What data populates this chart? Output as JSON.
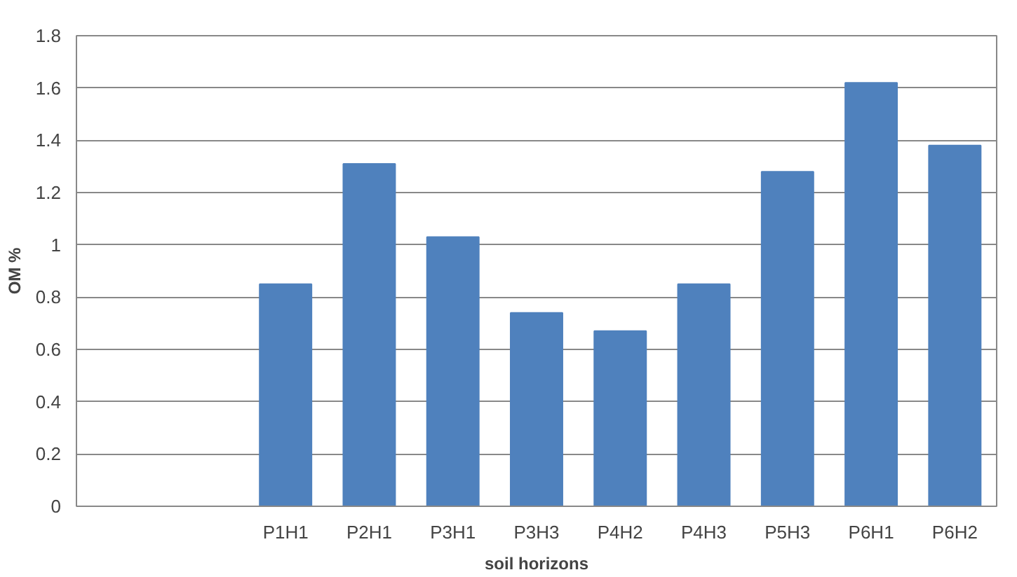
{
  "chart_data": {
    "type": "bar",
    "xlabel": "soil horizons",
    "ylabel": "OM %",
    "categories": [
      null,
      null,
      "P1H1",
      "P2H1",
      "P3H1",
      "P3H3",
      "P4H2",
      "P4H3",
      "P5H3",
      "P6H1",
      "P6H2"
    ],
    "values": [
      null,
      null,
      0.85,
      1.31,
      1.03,
      0.74,
      0.67,
      0.85,
      1.28,
      1.62,
      1.38
    ],
    "color": "#4f81bd",
    "ylim": [
      0,
      1.8
    ],
    "yticks": [
      0,
      {
        "value": 0.2,
        "label": "0.2"
      },
      {
        "value": 0.4,
        "label": "0.4"
      },
      {
        "value": 0.6,
        "label": "0.6"
      },
      {
        "value": 0.8,
        "label": "0.8"
      },
      1,
      {
        "value": 1.2,
        "label": "1.2"
      },
      {
        "value": 1.4,
        "label": "1.4"
      },
      {
        "value": 1.6,
        "label": "1.6"
      },
      {
        "value": 1.8,
        "label": "1.8"
      }
    ],
    "grid": "y"
  }
}
